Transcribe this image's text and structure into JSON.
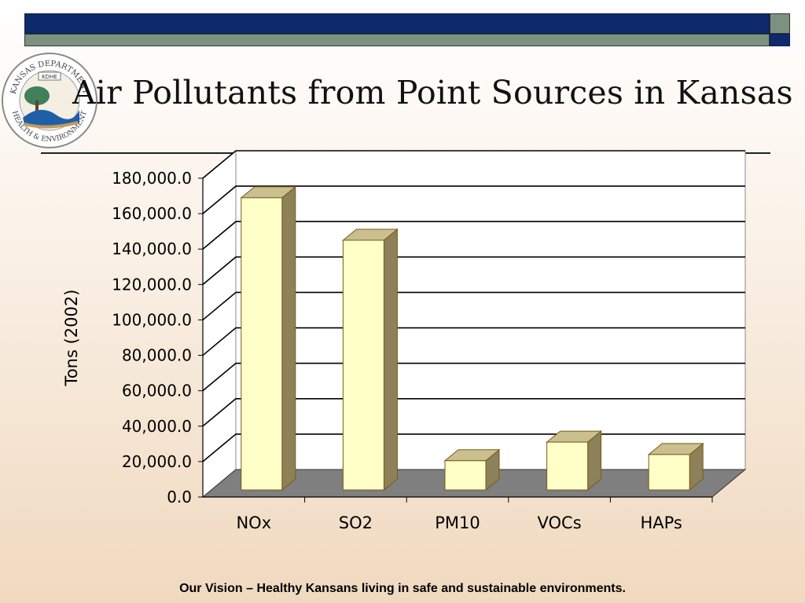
{
  "slide": {
    "title": "Air Pollutants from Point Sources in Kansas",
    "footer": "Our Vision – Healthy Kansans living in safe and sustainable environments.",
    "logo": {
      "top_text": "KANSAS DEPARTMENT",
      "bottom_text": "HEALTH & ENVIRONMENT",
      "badge": "KDHE"
    },
    "colors": {
      "navy": "#0e2a6b",
      "green": "#7c9180",
      "bar_face": "#ffffc8",
      "bar_edge": "#7a5a1a",
      "floor": "#7f7f7f"
    }
  },
  "chart_data": {
    "type": "bar",
    "title": "",
    "xlabel": "",
    "ylabel": "Tons (2002)",
    "categories": [
      "NOx",
      "SO2",
      "PM10",
      "VOCs",
      "HAPs"
    ],
    "values": [
      165000,
      141000,
      16500,
      27000,
      20000
    ],
    "ylim": [
      0,
      180000
    ],
    "yticks": [
      "0.0",
      "20,000.0",
      "40,000.0",
      "60,000.0",
      "80,000.0",
      "100,000.0",
      "120,000.0",
      "140,000.0",
      "160,000.0",
      "180,000.0"
    ],
    "grid": true,
    "legend": "none",
    "style": "3d-column"
  }
}
